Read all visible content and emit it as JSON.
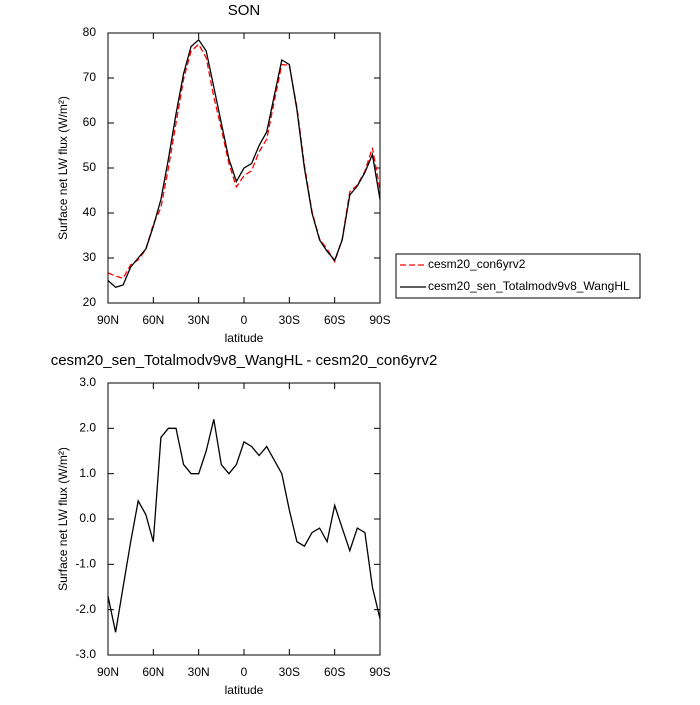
{
  "chart_data": [
    {
      "type": "line",
      "title": "SON",
      "xlabel": "latitude",
      "ylabel": "Surface net LW flux (W/m²)",
      "x": [
        90,
        85,
        80,
        75,
        70,
        65,
        60,
        55,
        50,
        45,
        40,
        35,
        30,
        25,
        20,
        15,
        10,
        5,
        0,
        -5,
        -10,
        -15,
        -20,
        -25,
        -30,
        -35,
        -40,
        -45,
        -50,
        -55,
        -60,
        -65,
        -70,
        -75,
        -80,
        -85,
        -90
      ],
      "series": [
        {
          "name": "cesm20_con6yrv2",
          "color": "#ff0000",
          "line_style": "dashed",
          "values": [
            26.7,
            26,
            25.5,
            28.5,
            29.6,
            31.9,
            37.5,
            41.2,
            50,
            60,
            69.8,
            76,
            77.5,
            74.5,
            65.8,
            58.8,
            51,
            45.8,
            48.3,
            49.4,
            53.6,
            56.4,
            64.7,
            73,
            72.8,
            63.5,
            50.6,
            40.3,
            34.2,
            32,
            29.2,
            34.2,
            44.7,
            46.2,
            49.3,
            54.5,
            45.2
          ]
        },
        {
          "name": "cesm20_sen_Totalmodv9v8_WangHL",
          "color": "#000000",
          "line_style": "solid",
          "values": [
            25,
            23.5,
            24,
            28,
            30,
            32,
            37,
            43,
            52,
            62,
            71,
            77,
            78.5,
            76,
            68,
            60,
            52,
            47,
            50,
            51,
            55,
            58,
            66,
            74,
            73,
            63,
            50,
            40,
            34,
            31.5,
            29.5,
            34,
            44,
            46,
            49,
            53,
            43
          ]
        }
      ],
      "xlim": [
        90,
        -90
      ],
      "xticks": [
        {
          "value": 90,
          "label": "90N"
        },
        {
          "value": 60,
          "label": "60N"
        },
        {
          "value": 30,
          "label": "30N"
        },
        0,
        {
          "value": -30,
          "label": "30S"
        },
        {
          "value": -60,
          "label": "60S"
        },
        {
          "value": -90,
          "label": "90S"
        }
      ],
      "ylim": [
        20,
        80
      ],
      "yticks": [
        20,
        30,
        40,
        50,
        60,
        70,
        80
      ],
      "legend": "right"
    },
    {
      "type": "line",
      "title": "cesm20_sen_Totalmodv9v8_WangHL - cesm20_con6yrv2",
      "xlabel": "latitude",
      "ylabel": "Surface net LW flux (W/m²)",
      "x": [
        90,
        85,
        80,
        75,
        70,
        65,
        60,
        55,
        50,
        45,
        40,
        35,
        30,
        25,
        20,
        15,
        10,
        5,
        0,
        -5,
        -10,
        -15,
        -20,
        -25,
        -30,
        -35,
        -40,
        -45,
        -50,
        -55,
        -60,
        -65,
        -70,
        -75,
        -80,
        -85,
        -90
      ],
      "color": "#000000",
      "values": [
        -1.7,
        -2.5,
        -1.5,
        -0.5,
        0.4,
        0.1,
        -0.5,
        1.8,
        2.0,
        2.0,
        1.2,
        1.0,
        1.0,
        1.5,
        2.2,
        1.2,
        1.0,
        1.2,
        1.7,
        1.6,
        1.4,
        1.6,
        1.3,
        1.0,
        0.2,
        -0.5,
        -0.6,
        -0.3,
        -0.2,
        -0.5,
        0.3,
        -0.2,
        -0.7,
        -0.2,
        -0.3,
        -1.5,
        -2.2
      ],
      "xlim": [
        90,
        -90
      ],
      "xticks": [
        {
          "value": 90,
          "label": "90N"
        },
        {
          "value": 60,
          "label": "60N"
        },
        {
          "value": 30,
          "label": "30N"
        },
        0,
        {
          "value": -30,
          "label": "30S"
        },
        {
          "value": -60,
          "label": "60S"
        },
        {
          "value": -90,
          "label": "90S"
        }
      ],
      "ylim": [
        -3,
        3
      ],
      "yticks": [
        {
          "value": -3,
          "label": "-3.0"
        },
        {
          "value": -2,
          "label": "-2.0"
        },
        {
          "value": -1,
          "label": "-1.0"
        },
        {
          "value": 0,
          "label": "0.0"
        },
        {
          "value": 1,
          "label": "1.0"
        },
        {
          "value": 2,
          "label": "2.0"
        },
        {
          "value": 3,
          "label": "3.0"
        }
      ]
    }
  ]
}
